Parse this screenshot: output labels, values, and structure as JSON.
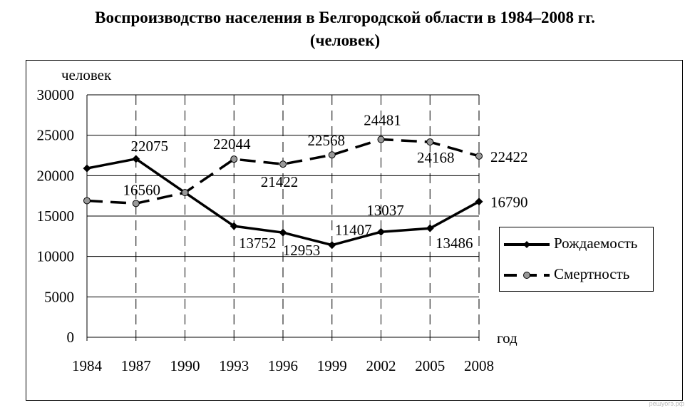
{
  "title_line1": "Воспроизводство населения в Белгородской области в 1984–2008 гг.",
  "title_line2": "(человек)",
  "watermark": "решуогэ.рф",
  "chart_data": {
    "type": "line",
    "title": "Воспроизводство населения в Белгородской области в 1984–2008 гг. (человек)",
    "ylabel": "человек",
    "xlabel": "год",
    "ylim": [
      0,
      30000
    ],
    "yticks": [
      0,
      5000,
      10000,
      15000,
      20000,
      25000,
      30000
    ],
    "categories": [
      "1984",
      "1987",
      "1990",
      "1993",
      "1996",
      "1999",
      "2002",
      "2005",
      "2008"
    ],
    "grid": true,
    "legend_position": "right",
    "series": [
      {
        "name": "Рождаемость",
        "style": "solid",
        "marker": "diamond",
        "color": "#000000",
        "values": [
          20900,
          22075,
          17900,
          13752,
          12953,
          11407,
          13037,
          13486,
          16790
        ],
        "labels": [
          "",
          "22075",
          "",
          "13752",
          "12953",
          "11407",
          "13037",
          "13486",
          "16790"
        ]
      },
      {
        "name": "Смертность",
        "style": "dashed",
        "marker": "circle",
        "color": "#000000",
        "marker_fill": "#999999",
        "values": [
          16900,
          16560,
          17900,
          22044,
          21422,
          22568,
          24481,
          24168,
          22422
        ],
        "labels": [
          "",
          "16560",
          "",
          "22044",
          "21422",
          "22568",
          "24481",
          "24168",
          "22422"
        ]
      }
    ]
  }
}
